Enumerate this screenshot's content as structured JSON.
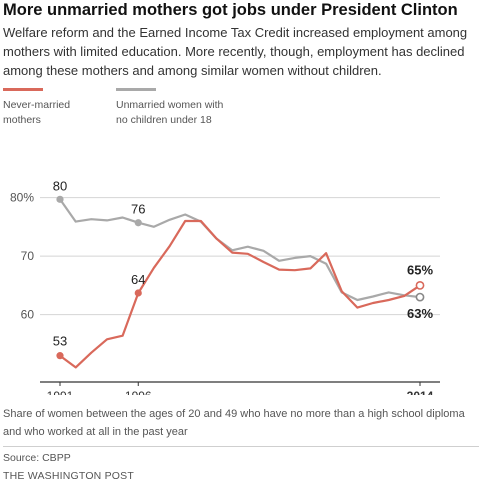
{
  "header": {
    "title": "More unmarried mothers got jobs under President Clinton",
    "subtitle": "Welfare reform and the Earned Income Tax Credit increased employment among mothers with limited education. More recently, though, employment has declined among these mothers and among similar women without children."
  },
  "colors": {
    "mothers": "#d9695b",
    "women": "#a9a9a9",
    "grid": "#d4d4d4",
    "axis": "#333333"
  },
  "chart_data": {
    "type": "line",
    "x": [
      1991,
      1992,
      1993,
      1994,
      1995,
      1996,
      1997,
      1998,
      1999,
      2000,
      2001,
      2002,
      2003,
      2004,
      2005,
      2006,
      2007,
      2008,
      2009,
      2010,
      2011,
      2012,
      2013,
      2014
    ],
    "series": [
      {
        "name": "Never-married mothers",
        "values": [
          53,
          51,
          53.5,
          55.8,
          56.4,
          63.7,
          68,
          71.7,
          76,
          76,
          73,
          70.6,
          70.4,
          69,
          67.7,
          67.6,
          67.9,
          70.5,
          64,
          61.2,
          62,
          62.5,
          63.2,
          65
        ]
      },
      {
        "name": "Unmarried women with no children under 18",
        "values": [
          79.7,
          75.9,
          76.3,
          76.1,
          76.6,
          75.7,
          75,
          76.2,
          77.1,
          75.9,
          73,
          71,
          71.6,
          70.9,
          69.2,
          69.7,
          70,
          68.7,
          63.8,
          62.5,
          63.1,
          63.8,
          63.3,
          63
        ]
      }
    ],
    "legend": [
      "Never-married mothers",
      "Unmarried women with no children under 18"
    ],
    "ytick_labels": [
      "80%",
      "70",
      "60"
    ],
    "yticks": [
      80,
      70,
      60
    ],
    "xtick_labels": [
      "1991",
      "1996",
      "2014"
    ],
    "xticks": [
      1991,
      1996,
      2014
    ],
    "annotations": [
      {
        "text": "80",
        "x": 1991,
        "y": 79.7
      },
      {
        "text": "76",
        "x": 1996,
        "y": 75.7
      },
      {
        "text": "53",
        "x": 1991,
        "y": 53
      },
      {
        "text": "64",
        "x": 1996,
        "y": 63.7
      },
      {
        "text": "65%",
        "x": 2014,
        "y": 65
      },
      {
        "text": "63%",
        "x": 2014,
        "y": 63
      }
    ],
    "ylim": [
      48.5,
      83
    ],
    "xlim": [
      1991,
      2014
    ],
    "grid": "horizontal"
  },
  "footer": {
    "note": "Share of women between the ages of 20 and 49 who have no more than a high school diploma and who worked at all in the past year",
    "source": "Source: CBPP",
    "credit": "THE WASHINGTON POST"
  }
}
